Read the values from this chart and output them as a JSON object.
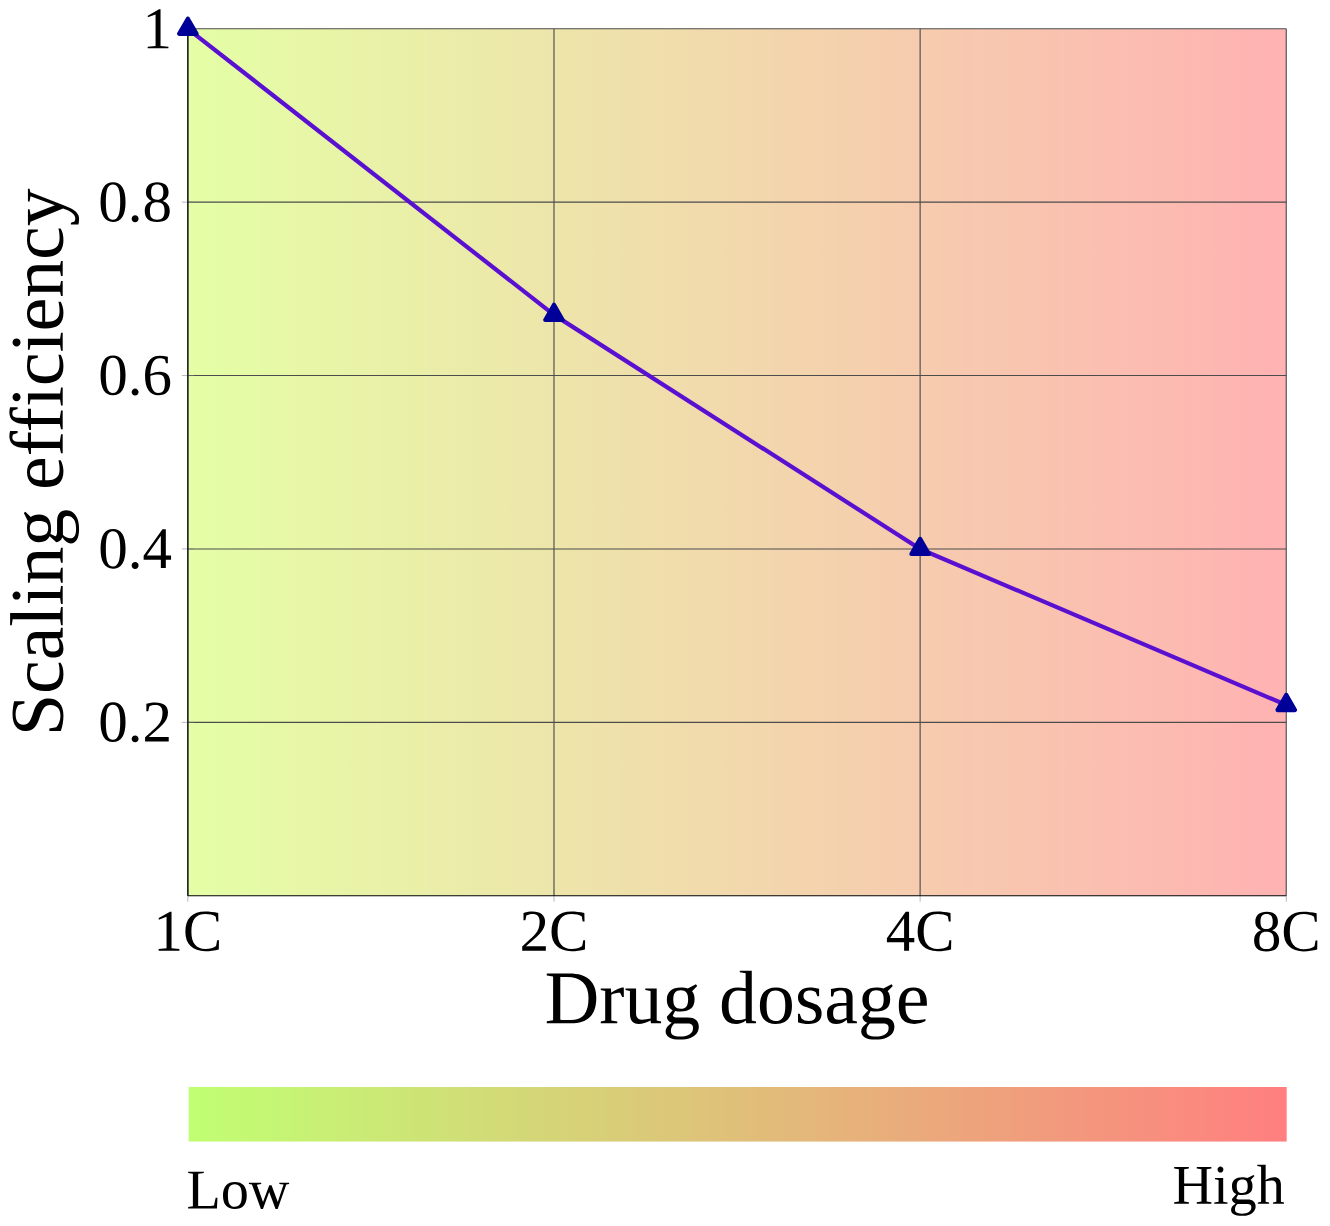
{
  "chart_data": {
    "type": "line",
    "categories": [
      "1C",
      "2C",
      "4C",
      "8C"
    ],
    "values": [
      1,
      0.67,
      0.4,
      0.22
    ],
    "color": "#5a10d0",
    "marker": "triangle",
    "line_style": "solid",
    "ylim": [
      0,
      1
    ],
    "yticks": [
      0.2,
      0.4,
      0.6,
      0.8,
      1
    ],
    "grid": true,
    "xlabel": "Drug dosage",
    "ylabel": "Scaling efficiency",
    "annotations": [
      "Low",
      "High"
    ]
  }
}
